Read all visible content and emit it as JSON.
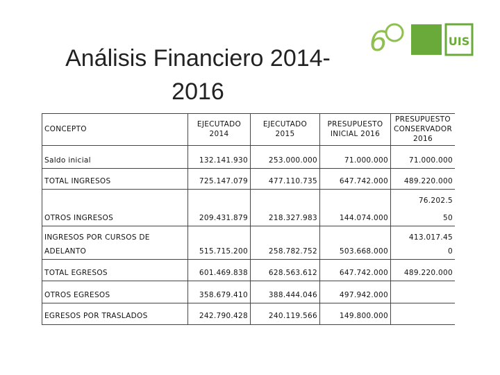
{
  "header": {
    "title": [
      "Análisis Financiero 2014-",
      "2016"
    ]
  },
  "table": {
    "columns": [
      "CONCEPTO",
      "EJECUTADO 2014",
      "EJECUTADO 2015",
      "PRESUPUESTO INICIAL 2016",
      "PRESUPUESTO CONSERVADOR 2016"
    ],
    "rows": [
      [
        "Saldo inicial",
        "132.141.930",
        "253.000.000",
        "71.000.000",
        "71.000.000"
      ],
      [
        "TOTAL INGRESOS",
        "725.147.079",
        "477.110.735",
        "647.742.000",
        "489.220.000"
      ],
      [
        "OTROS INGRESOS",
        "209.431.879",
        "218.327.983",
        "144.074.000",
        [
          "76.202.5",
          "50"
        ]
      ],
      [
        [
          "INGRESOS POR CURSOS DE",
          "ADELANTO"
        ],
        "515.715.200",
        "258.782.752",
        "503.668.000",
        [
          "413.017.45",
          "0"
        ]
      ],
      [
        "TOTAL EGRESOS",
        "601.469.838",
        "628.563.612",
        "647.742.000",
        "489.220.000"
      ],
      [
        "OTROS EGRESOS",
        "358.679.410",
        "388.444.046",
        "497.942.000",
        null
      ],
      [
        "EGRESOS POR TRASLADOS",
        "242.790.428",
        "240.119.566",
        "149.800.000",
        null
      ]
    ]
  }
}
